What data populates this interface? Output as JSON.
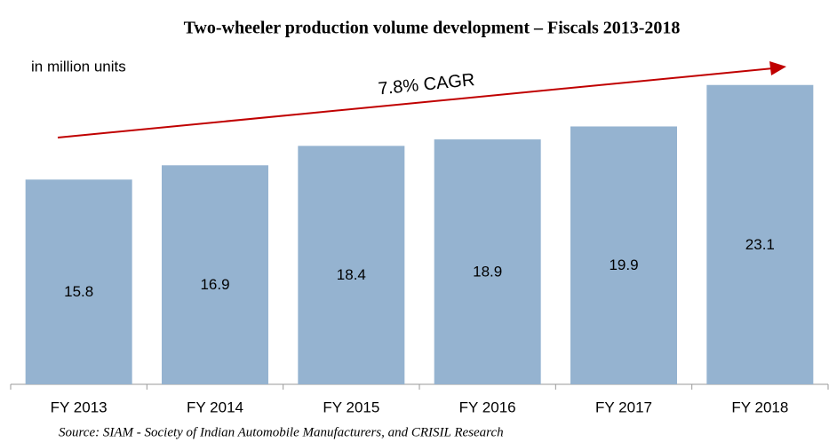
{
  "chart_data": {
    "type": "bar",
    "title": "Two-wheeler production volume development – Fiscals 2013-2018",
    "subtitle": "in million units",
    "annotation": "7.8% CAGR",
    "source": "Source: SIAM - Society of Indian Automobile Manufacturers, and CRISIL Research",
    "categories": [
      "FY 2013",
      "FY 2014",
      "FY 2015",
      "FY 2016",
      "FY 2017",
      "FY 2018"
    ],
    "values": [
      15.8,
      16.9,
      18.4,
      18.9,
      19.9,
      23.1
    ],
    "color": "#95b3d0"
  }
}
